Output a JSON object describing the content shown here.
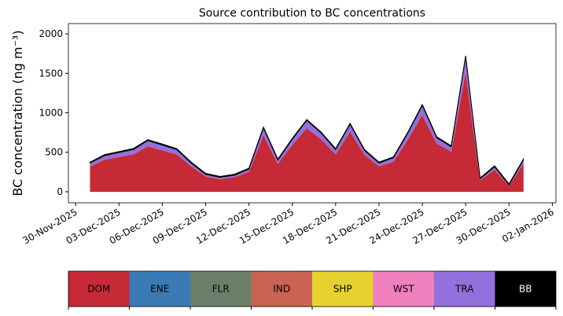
{
  "chart_data": {
    "type": "stacked_area",
    "title": "Source contribution to BC concentrations",
    "ylabel": "BC concentration (ng m⁻³)",
    "x": [
      "2025-12-01",
      "2025-12-02",
      "2025-12-03",
      "2025-12-04",
      "2025-12-05",
      "2025-12-06",
      "2025-12-07",
      "2025-12-08",
      "2025-12-09",
      "2025-12-10",
      "2025-12-11",
      "2025-12-12",
      "2025-12-13",
      "2025-12-14",
      "2025-12-15",
      "2025-12-16",
      "2025-12-17",
      "2025-12-18",
      "2025-12-19",
      "2025-12-20",
      "2025-12-21",
      "2025-12-22",
      "2025-12-23",
      "2025-12-24",
      "2025-12-25",
      "2025-12-26",
      "2025-12-27",
      "2025-12-28",
      "2025-12-29",
      "2025-12-30",
      "2025-12-31"
    ],
    "series": [
      {
        "name": "DOM",
        "color": "#c62a37",
        "values": [
          323,
          408,
          442,
          476,
          578,
          527,
          476,
          323,
          196,
          162,
          187,
          255,
          723,
          357,
          595,
          808,
          663,
          476,
          765,
          468,
          323,
          383,
          663,
          978,
          612,
          510,
          1530,
          145,
          281,
          77,
          357
        ]
      },
      {
        "name": "ENE",
        "color": "#3a7bb5",
        "values": [
          0,
          0,
          0,
          0,
          0,
          0,
          0,
          0,
          0,
          0,
          0,
          0,
          0,
          0,
          0,
          0,
          0,
          0,
          0,
          0,
          0,
          0,
          0,
          0,
          0,
          0,
          0,
          0,
          0,
          0,
          0
        ]
      },
      {
        "name": "FLR",
        "color": "#6b7f6b",
        "values": [
          0,
          0,
          0,
          0,
          0,
          0,
          0,
          0,
          0,
          0,
          0,
          0,
          0,
          0,
          0,
          0,
          0,
          0,
          0,
          0,
          0,
          0,
          0,
          0,
          0,
          0,
          0,
          0,
          0,
          0,
          0
        ]
      },
      {
        "name": "IND",
        "color": "#c96352",
        "values": [
          0,
          0,
          0,
          0,
          0,
          0,
          0,
          0,
          0,
          0,
          0,
          0,
          0,
          0,
          0,
          0,
          0,
          0,
          0,
          0,
          0,
          0,
          0,
          0,
          0,
          0,
          0,
          0,
          0,
          0,
          0
        ]
      },
      {
        "name": "SHP",
        "color": "#e6d22f",
        "values": [
          0,
          0,
          0,
          0,
          0,
          0,
          0,
          0,
          0,
          0,
          0,
          0,
          0,
          0,
          0,
          0,
          0,
          0,
          0,
          0,
          0,
          0,
          0,
          0,
          0,
          0,
          0,
          0,
          0,
          0,
          0
        ]
      },
      {
        "name": "WST",
        "color": "#f07fbe",
        "values": [
          0,
          0,
          0,
          0,
          0,
          0,
          0,
          0,
          0,
          0,
          0,
          0,
          0,
          0,
          0,
          0,
          0,
          0,
          0,
          0,
          0,
          0,
          0,
          0,
          0,
          0,
          0,
          0,
          0,
          0,
          0
        ]
      },
      {
        "name": "TRA",
        "color": "#9370db",
        "values": [
          40,
          50,
          55,
          60,
          70,
          65,
          58,
          40,
          25,
          20,
          23,
          32,
          85,
          45,
          70,
          95,
          80,
          58,
          90,
          55,
          40,
          47,
          80,
          115,
          72,
          60,
          180,
          18,
          35,
          10,
          45
        ]
      },
      {
        "name": "BB",
        "color": "#000000",
        "values": [
          12,
          12,
          12,
          12,
          12,
          12,
          12,
          12,
          12,
          12,
          12,
          12,
          12,
          12,
          12,
          12,
          12,
          12,
          12,
          12,
          12,
          12,
          12,
          12,
          12,
          12,
          12,
          12,
          12,
          12,
          12
        ]
      }
    ],
    "xlim": [
      "2025-11-29T12:00",
      "2026-01-02T06:00"
    ],
    "xticks": [
      {
        "value": "2025-11-30",
        "label": "30-Nov-2025"
      },
      {
        "value": "2025-12-03",
        "label": "03-Dec-2025"
      },
      {
        "value": "2025-12-06",
        "label": "06-Dec-2025"
      },
      {
        "value": "2025-12-09",
        "label": "09-Dec-2025"
      },
      {
        "value": "2025-12-12",
        "label": "12-Dec-2025"
      },
      {
        "value": "2025-12-15",
        "label": "15-Dec-2025"
      },
      {
        "value": "2025-12-18",
        "label": "18-Dec-2025"
      },
      {
        "value": "2025-12-21",
        "label": "21-Dec-2025"
      },
      {
        "value": "2025-12-24",
        "label": "24-Dec-2025"
      },
      {
        "value": "2025-12-27",
        "label": "27-Dec-2025"
      },
      {
        "value": "2025-12-30",
        "label": "30-Dec-2025"
      },
      {
        "value": "2026-01-02",
        "label": "02-Jan-2026"
      }
    ],
    "ylim": [
      -140,
      2130
    ],
    "yticks": [
      0,
      500,
      1000,
      1500,
      2000
    ],
    "legend": "bottom"
  }
}
